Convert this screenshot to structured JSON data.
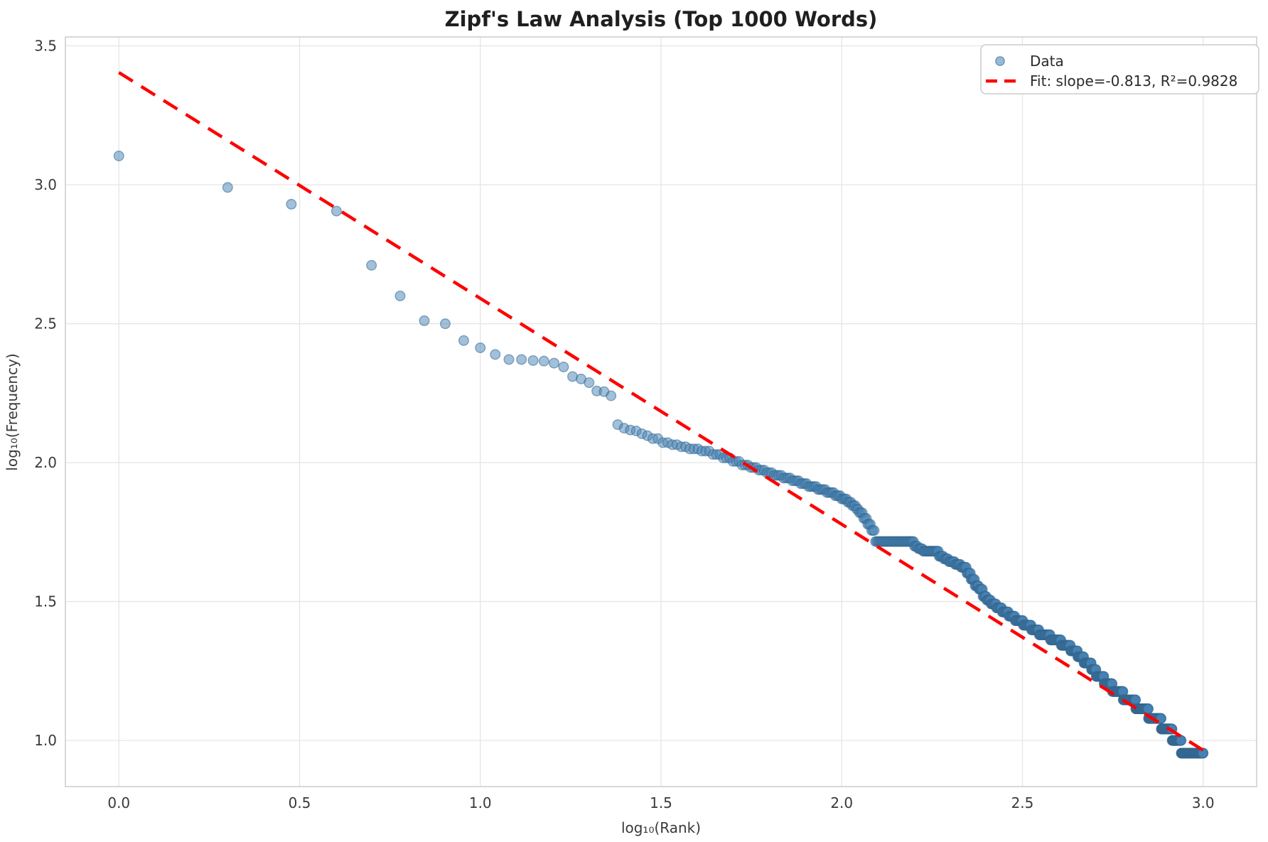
{
  "chart_data": {
    "type": "scatter",
    "title": "Zipf's Law Analysis (Top 1000 Words)",
    "xlabel": "log₁₀(Rank)",
    "ylabel": "log₁₀(Frequency)",
    "x_is": "log10(word rank 1..1000)",
    "y_is": "log10(word frequency)",
    "xlim": [
      -0.148,
      3.148
    ],
    "ylim": [
      0.834,
      3.532
    ],
    "x_tick_values": [
      0.0,
      0.5,
      1.0,
      1.5,
      2.0,
      2.5,
      3.0
    ],
    "x_tick_labels": [
      "0.0",
      "0.5",
      "1.0",
      "1.5",
      "2.0",
      "2.5",
      "3.0"
    ],
    "y_tick_values": [
      1.0,
      1.5,
      2.0,
      2.5,
      3.0,
      3.5
    ],
    "y_tick_labels": [
      "1.0",
      "1.5",
      "2.0",
      "2.5",
      "3.0",
      "3.5"
    ],
    "grid": true,
    "legend_position": "upper right",
    "legend": [
      "Data",
      "Fit: slope=-0.813, R²=0.9828"
    ],
    "fit": {
      "slope": -0.813,
      "intercept": 3.404,
      "r2": 0.9828,
      "x_range": [
        0.0,
        3.0
      ]
    },
    "series": [
      {
        "name": "Data",
        "note": "frequency runs as [frequency, number_of_consecutive_ranks], ranks start at 1; point = (log10(rank), log10(frequency))",
        "freq_runs": [
          [
            1270,
            1
          ],
          [
            978,
            1
          ],
          [
            851,
            1
          ],
          [
            804,
            1
          ],
          [
            513,
            1
          ],
          [
            398,
            1
          ],
          [
            324,
            1
          ],
          [
            316,
            1
          ],
          [
            275,
            1
          ],
          [
            259,
            1
          ],
          [
            245,
            1
          ],
          [
            235,
            2
          ],
          [
            233,
            1
          ],
          [
            232,
            1
          ],
          [
            228,
            1
          ],
          [
            221,
            1
          ],
          [
            204,
            1
          ],
          [
            200,
            1
          ],
          [
            194,
            1
          ],
          [
            181,
            1
          ],
          [
            180,
            1
          ],
          [
            174,
            1
          ],
          [
            137,
            1
          ],
          [
            133,
            1
          ],
          [
            131,
            1
          ],
          [
            130,
            1
          ],
          [
            127,
            1
          ],
          [
            125,
            1
          ],
          [
            122,
            2
          ],
          [
            118,
            2
          ],
          [
            116,
            2
          ],
          [
            114,
            2
          ],
          [
            112,
            3
          ],
          [
            110,
            3
          ],
          [
            107,
            3
          ],
          [
            104,
            3
          ],
          [
            101,
            3
          ],
          [
            98,
            3
          ],
          [
            96,
            3
          ],
          [
            94,
            3
          ],
          [
            92,
            3
          ],
          [
            90,
            4
          ],
          [
            88,
            4
          ],
          [
            86,
            4
          ],
          [
            84,
            4
          ],
          [
            82,
            5
          ],
          [
            80,
            5
          ],
          [
            78,
            5
          ],
          [
            76,
            4
          ],
          [
            74,
            4
          ],
          [
            72,
            3
          ],
          [
            70,
            3
          ],
          [
            68,
            2
          ],
          [
            66,
            3
          ],
          [
            63,
            3
          ],
          [
            60,
            3
          ],
          [
            57,
            3
          ],
          [
            52,
            35
          ],
          [
            50,
            4
          ],
          [
            49,
            5
          ],
          [
            48,
            18
          ],
          [
            46,
            6
          ],
          [
            45,
            6
          ],
          [
            44,
            8
          ],
          [
            43,
            8
          ],
          [
            42,
            8
          ],
          [
            40,
            6
          ],
          [
            38,
            6
          ],
          [
            36,
            6
          ],
          [
            35,
            6
          ],
          [
            33,
            6
          ],
          [
            32,
            7
          ],
          [
            31,
            9
          ],
          [
            30,
            10
          ],
          [
            29,
            12
          ],
          [
            28,
            12
          ],
          [
            27,
            16
          ],
          [
            26,
            17
          ],
          [
            25,
            17
          ],
          [
            24,
            26
          ],
          [
            23,
            27
          ],
          [
            22,
            25
          ],
          [
            21,
            20
          ],
          [
            20,
            18
          ],
          [
            19,
            23
          ],
          [
            18,
            15
          ],
          [
            17,
            26
          ],
          [
            16,
            29
          ],
          [
            15,
            40
          ],
          [
            14,
            50
          ],
          [
            13,
            55
          ],
          [
            12,
            60
          ],
          [
            11,
            55
          ],
          [
            10,
            49
          ],
          [
            9,
            131
          ]
        ]
      }
    ],
    "colors": {
      "point_fill": "#4682b4",
      "point_edge": "#35688f",
      "fit_line": "#ff0000",
      "grid_line": "#e5e5e5",
      "spine": "#cccccc",
      "legend_border": "#cccccc",
      "background": "#ffffff"
    }
  }
}
